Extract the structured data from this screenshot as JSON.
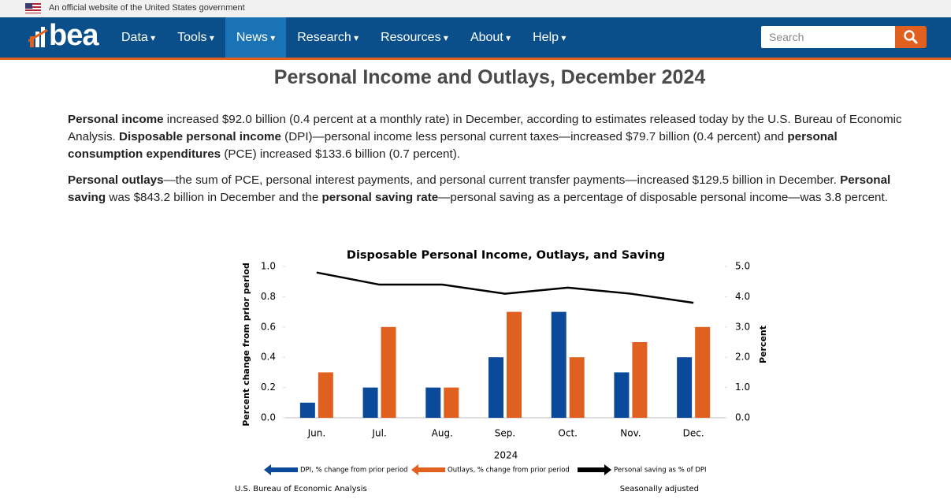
{
  "banner": "An official website of the United States government",
  "nav": {
    "logo": "bea",
    "items": [
      "Data",
      "Tools",
      "News",
      "Research",
      "Resources",
      "About",
      "Help"
    ],
    "search_placeholder": "Search"
  },
  "article": {
    "title": "Personal Income and Outlays, December 2024",
    "paragraphs": [
      [
        {
          "text": "Personal income",
          "bold": true
        },
        {
          "text": " increased $92.0 billion (0.4 percent at a monthly rate) in December, according to estimates released today by the U.S. Bureau of Economic Analysis. "
        },
        {
          "text": "Disposable personal income",
          "bold": true
        },
        {
          "text": " (DPI)—personal income less personal current taxes—increased $79.7 billion (0.4 percent) and "
        },
        {
          "text": "personal consumption expenditures",
          "bold": true
        },
        {
          "text": " (PCE) increased $133.6 billion (0.7 percent)."
        }
      ],
      [
        {
          "text": "Personal outlays",
          "bold": true
        },
        {
          "text": "—the sum of PCE, personal interest payments, and personal current transfer payments—increased $129.5 billion in December. "
        },
        {
          "text": "Personal saving",
          "bold": true
        },
        {
          "text": " was $843.2 billion in December and the "
        },
        {
          "text": "personal saving rate",
          "bold": true
        },
        {
          "text": "—personal saving as a percentage of disposable personal income—was 3.8 percent."
        }
      ]
    ]
  },
  "chart_data": {
    "type": "bar",
    "title": "Disposable Personal Income, Outlays, and Saving",
    "categories": [
      "Jun.",
      "Jul.",
      "Aug.",
      "Sep.",
      "Oct.",
      "Nov.",
      "Dec."
    ],
    "x_label": "2024",
    "y_label": "Percent change from prior period",
    "y2_label": "Percent",
    "series": [
      {
        "name": "DPI, % change from prior period",
        "color": "#0b4a9a",
        "type": "bar",
        "values": [
          0.1,
          0.2,
          0.2,
          0.4,
          0.7,
          0.3,
          0.4
        ]
      },
      {
        "name": "Outlays, % change from prior period",
        "color": "#e0601f",
        "type": "bar",
        "values": [
          0.3,
          0.6,
          0.2,
          0.7,
          0.4,
          0.5,
          0.6
        ]
      },
      {
        "name": "Personal saving as % of DPI",
        "color": "#000000",
        "type": "line",
        "axis": "y2",
        "values": [
          4.8,
          4.4,
          4.4,
          4.1,
          4.3,
          4.1,
          3.8
        ]
      }
    ],
    "ylim": [
      0,
      1.0
    ],
    "yticks": [
      {
        "value": 0,
        "label": "0.0"
      },
      0.2,
      0.4,
      0.6,
      0.8,
      {
        "value": 1,
        "label": "1.0"
      }
    ],
    "y2lim": [
      0,
      5.0
    ],
    "y2ticks": [
      {
        "value": 0,
        "label": "0.0"
      },
      {
        "value": 1,
        "label": "1.0"
      },
      {
        "value": 2,
        "label": "2.0"
      },
      {
        "value": 3,
        "label": "3.0"
      },
      {
        "value": 4,
        "label": "4.0"
      },
      {
        "value": 5,
        "label": "5.0"
      }
    ],
    "source": "U.S. Bureau of Economic Analysis",
    "note": "Seasonally adjusted"
  }
}
